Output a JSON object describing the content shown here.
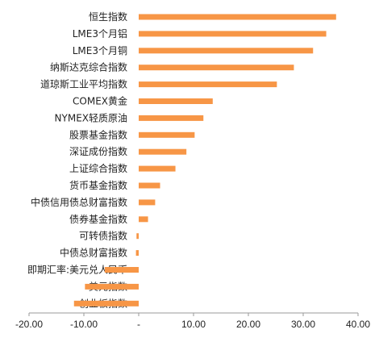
{
  "chart_data": {
    "type": "bar",
    "orientation": "horizontal",
    "categories": [
      "恒生指数",
      "LME3个月铝",
      "LME3个月铜",
      "纳斯达克综合指数",
      "道琼斯工业平均指数",
      "COMEX黄金",
      "NYMEX轻质原油",
      "股票基金指数",
      "深证成份指数",
      "上证综合指数",
      "货币基金指数",
      "中债信用债总财富指数",
      "债券基金指数",
      "可转债指数",
      "中债总财富指数",
      "即期汇率:美元兑人民币",
      "美元指数",
      "创业板指数"
    ],
    "values": [
      36.0,
      34.2,
      31.8,
      28.3,
      25.2,
      13.5,
      11.8,
      10.2,
      8.7,
      6.7,
      3.9,
      3.0,
      1.7,
      -0.4,
      -0.5,
      -6.2,
      -9.8,
      -11.8
    ],
    "xlim": [
      -20,
      40
    ],
    "xticks": [
      -20,
      -10,
      0,
      10,
      20,
      30,
      40
    ],
    "xtick_labels": [
      "-20.00",
      "-10.00",
      "-",
      "10.00",
      "20.00",
      "30.00",
      "40.00"
    ],
    "title": "",
    "xlabel": "",
    "ylabel": "",
    "grid": false,
    "legend": "none",
    "bar_color": "#F79646"
  }
}
